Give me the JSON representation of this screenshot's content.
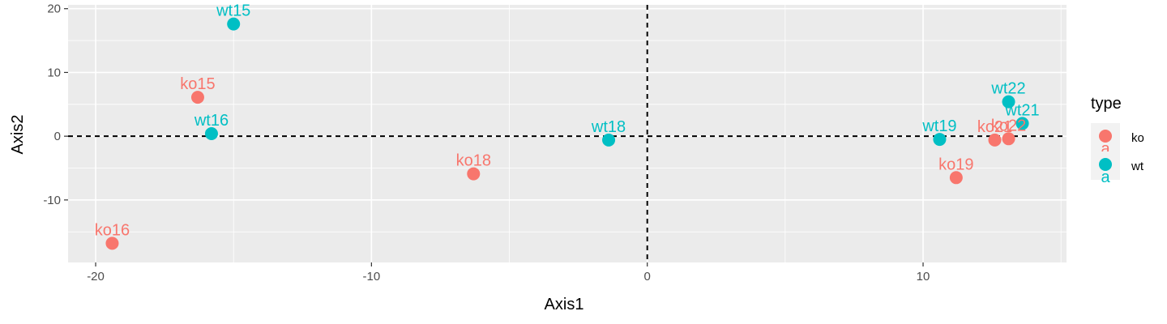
{
  "chart_data": {
    "type": "scatter",
    "title": "",
    "xlabel": "Axis1",
    "ylabel": "Axis2",
    "xlim": [
      -21,
      15.2
    ],
    "ylim": [
      -19.8,
      20.6
    ],
    "xticks": [
      -20,
      -10,
      0,
      10
    ],
    "yticks": [
      -10,
      0,
      10,
      20
    ],
    "x_tick_labels": [
      "-20",
      "-10",
      "0",
      "10"
    ],
    "y_tick_labels": [
      "-10",
      "0",
      "10",
      "20"
    ],
    "grid": true,
    "reference_lines": {
      "x": 0,
      "y": 0,
      "style": "dashed"
    },
    "legend": {
      "title": "type",
      "position": "right",
      "entries": [
        {
          "label": "ko",
          "color": "#F8766D",
          "key_glyph": "a"
        },
        {
          "label": "wt",
          "color": "#00BFC4",
          "key_glyph": "a"
        }
      ]
    },
    "colors": {
      "ko": "#F8766D",
      "wt": "#00BFC4",
      "panel": "#EBEBEB",
      "grid": "#FFFFFF"
    },
    "points": [
      {
        "label": "wt15",
        "type": "wt",
        "x": -15.0,
        "y": 17.6
      },
      {
        "label": "ko15",
        "type": "ko",
        "x": -16.3,
        "y": 6.1
      },
      {
        "label": "wt16",
        "type": "wt",
        "x": -15.8,
        "y": 0.4
      },
      {
        "label": "ko16",
        "type": "ko",
        "x": -19.4,
        "y": -16.8
      },
      {
        "label": "ko18",
        "type": "ko",
        "x": -6.3,
        "y": -5.9
      },
      {
        "label": "wt18",
        "type": "wt",
        "x": -1.4,
        "y": -0.6
      },
      {
        "label": "wt19",
        "type": "wt",
        "x": 10.6,
        "y": -0.5
      },
      {
        "label": "ko19",
        "type": "ko",
        "x": 11.2,
        "y": -6.5
      },
      {
        "label": "ko21",
        "type": "ko",
        "x": 12.6,
        "y": -0.6
      },
      {
        "label": "ko22",
        "type": "ko",
        "x": 13.1,
        "y": -0.4
      },
      {
        "label": "wt22",
        "type": "wt",
        "x": 13.1,
        "y": 5.4
      },
      {
        "label": "wt21",
        "type": "wt",
        "x": 13.6,
        "y": 2.0
      }
    ]
  }
}
